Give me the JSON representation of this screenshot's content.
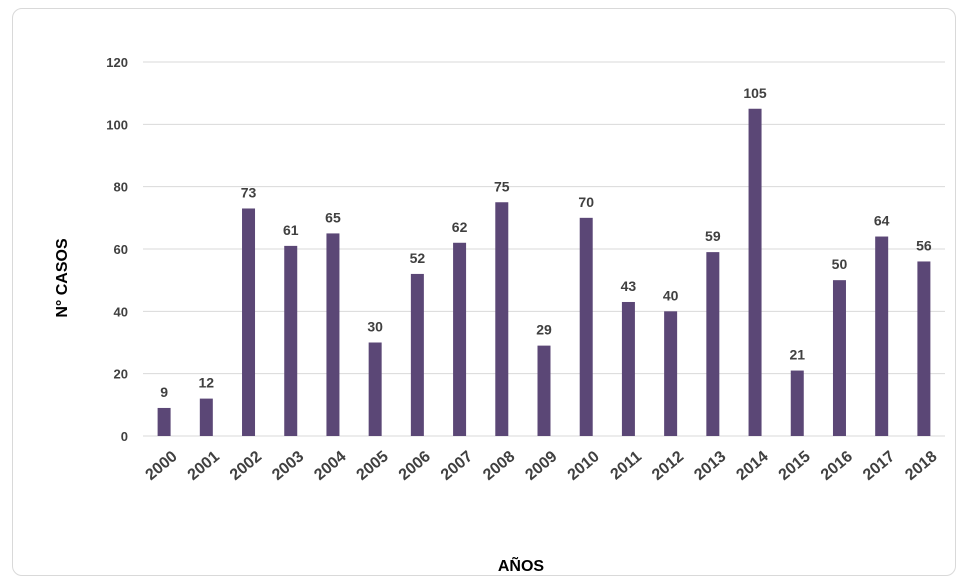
{
  "chart_data": {
    "type": "bar",
    "categories": [
      "2000",
      "2001",
      "2002",
      "2003",
      "2004",
      "2005",
      "2006",
      "2007",
      "2008",
      "2009",
      "2010",
      "2011",
      "2012",
      "2013",
      "2014",
      "2015",
      "2016",
      "2017",
      "2018"
    ],
    "values": [
      9,
      12,
      73,
      61,
      65,
      30,
      52,
      62,
      75,
      29,
      70,
      43,
      40,
      59,
      105,
      21,
      50,
      64,
      56
    ],
    "xlabel": "AÑOS",
    "ylabel": "N° CASOS",
    "ylim": [
      0,
      120
    ],
    "yticks": [
      0,
      20,
      40,
      60,
      80,
      100,
      120
    ],
    "grid": true,
    "legend": "none",
    "bar_color": "#5b4776",
    "grid_color": "#d9d9d9",
    "text_color": "#404040"
  }
}
